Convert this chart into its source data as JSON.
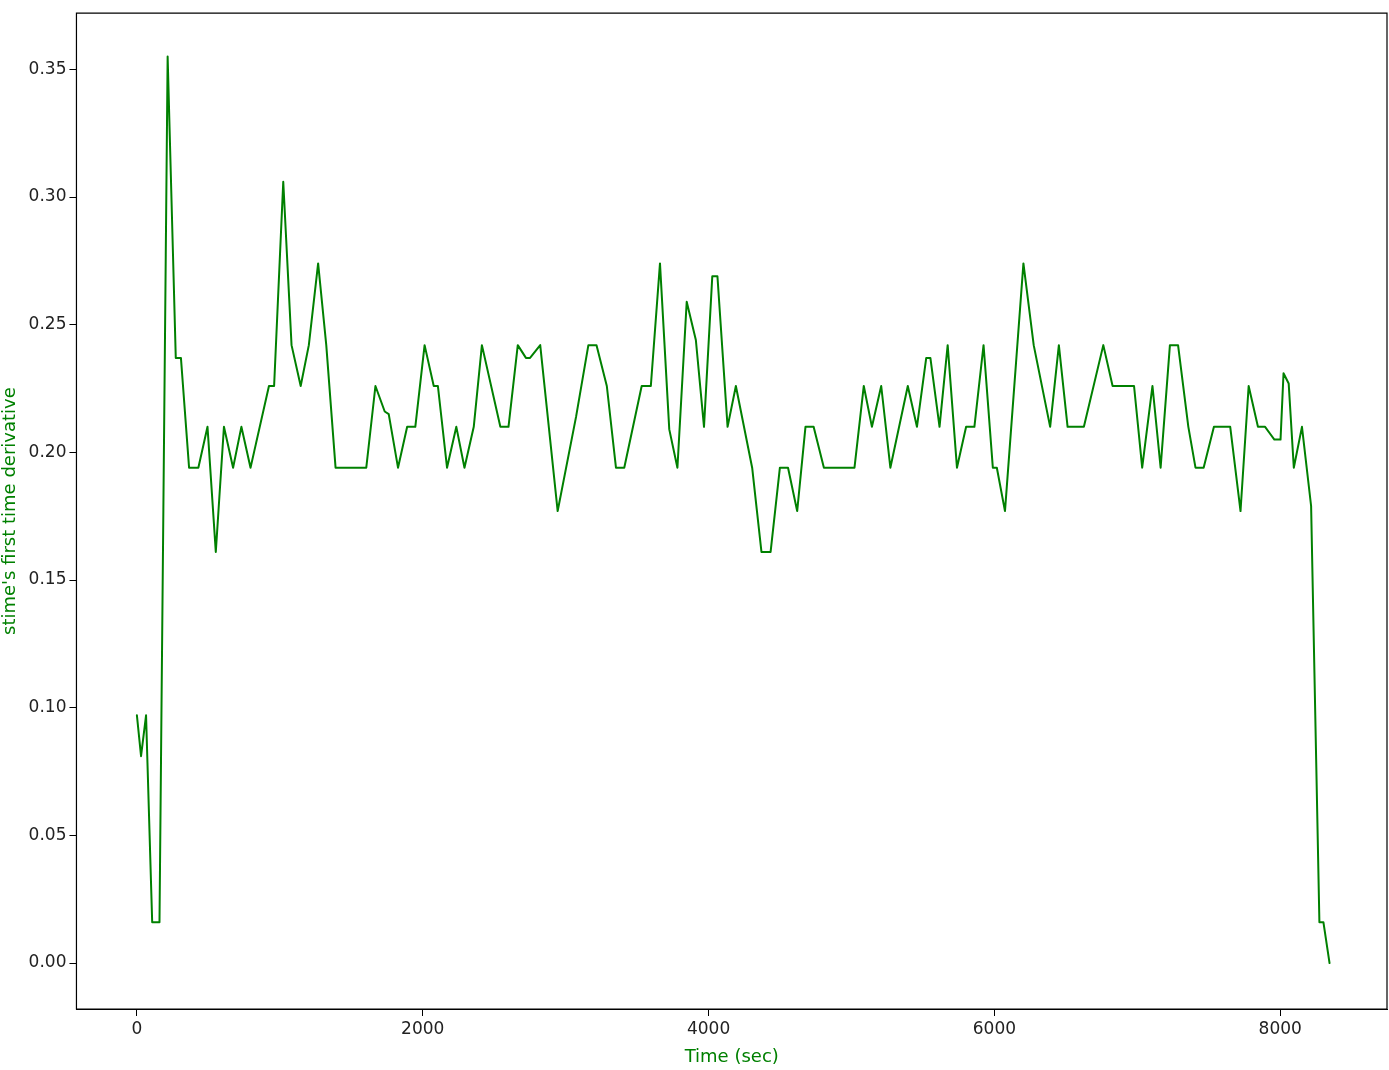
{
  "chart_data": {
    "type": "line",
    "xlabel": "Time (sec)",
    "ylabel": "stime's first time derivative",
    "grid": false,
    "legend": false,
    "marker": "none",
    "line_style": "solid",
    "xlim": [
      -423,
      8747
    ],
    "ylim": [
      -0.018,
      0.372
    ],
    "xticks": [
      0,
      2000,
      4000,
      6000,
      8000
    ],
    "yticks": [
      {
        "value": 0,
        "label": "0.00"
      },
      {
        "value": 0.05,
        "label": "0.05"
      },
      {
        "value": 0.1,
        "label": "0.10"
      },
      {
        "value": 0.15,
        "label": "0.15"
      },
      {
        "value": 0.2,
        "label": "0.20"
      },
      {
        "value": 0.25,
        "label": "0.25"
      },
      {
        "value": 0.3,
        "label": "0.30"
      },
      {
        "value": 0.35,
        "label": "0.35"
      }
    ],
    "series": [
      {
        "color": "#008000",
        "x": [
          0,
          29,
          64,
          107,
          158,
          215,
          272,
          308,
          365,
          430,
          494,
          552,
          609,
          673,
          731,
          795,
          924,
          960,
          1024,
          1082,
          1146,
          1203,
          1268,
          1325,
          1390,
          1605,
          1669,
          1734,
          1762,
          1827,
          1891,
          1948,
          2013,
          2077,
          2106,
          2170,
          2235,
          2292,
          2357,
          2414,
          2543,
          2600,
          2665,
          2722,
          2751,
          2822,
          2944,
          3073,
          3159,
          3216,
          3288,
          3352,
          3410,
          3532,
          3596,
          3660,
          3725,
          3782,
          3847,
          3911,
          3968,
          4026,
          4062,
          4133,
          4191,
          4305,
          4370,
          4434,
          4499,
          4556,
          4620,
          4678,
          4735,
          4807,
          5021,
          5086,
          5143,
          5208,
          5272,
          5394,
          5458,
          5523,
          5552,
          5616,
          5673,
          5738,
          5802,
          5860,
          5924,
          5989,
          6017,
          6074,
          6203,
          6275,
          6390,
          6451,
          6512,
          6626,
          6762,
          6827,
          6977,
          7034,
          7106,
          7163,
          7228,
          7285,
          7357,
          7407,
          7464,
          7536,
          7650,
          7722,
          7779,
          7844,
          7894,
          7959,
          8002,
          8023,
          8059,
          8095,
          8152,
          8216,
          8274,
          8302,
          8345
        ],
        "values": [
          0.097,
          0.081,
          0.097,
          0.016,
          0.016,
          0.355,
          0.237,
          0.237,
          0.194,
          0.194,
          0.21,
          0.161,
          0.21,
          0.194,
          0.21,
          0.194,
          0.226,
          0.226,
          0.306,
          0.242,
          0.226,
          0.242,
          0.274,
          0.242,
          0.194,
          0.194,
          0.226,
          0.216,
          0.215,
          0.194,
          0.21,
          0.21,
          0.242,
          0.226,
          0.226,
          0.194,
          0.21,
          0.194,
          0.21,
          0.242,
          0.21,
          0.21,
          0.242,
          0.237,
          0.237,
          0.242,
          0.177,
          0.214,
          0.242,
          0.242,
          0.226,
          0.194,
          0.194,
          0.226,
          0.226,
          0.274,
          0.209,
          0.194,
          0.259,
          0.244,
          0.21,
          0.269,
          0.269,
          0.21,
          0.226,
          0.194,
          0.161,
          0.161,
          0.194,
          0.194,
          0.177,
          0.21,
          0.21,
          0.194,
          0.194,
          0.226,
          0.21,
          0.226,
          0.194,
          0.226,
          0.21,
          0.237,
          0.237,
          0.21,
          0.242,
          0.194,
          0.21,
          0.21,
          0.242,
          0.194,
          0.194,
          0.177,
          0.274,
          0.242,
          0.21,
          0.242,
          0.21,
          0.21,
          0.242,
          0.226,
          0.226,
          0.194,
          0.226,
          0.194,
          0.242,
          0.242,
          0.21,
          0.194,
          0.194,
          0.21,
          0.21,
          0.177,
          0.226,
          0.21,
          0.21,
          0.205,
          0.205,
          0.231,
          0.227,
          0.194,
          0.21,
          0.179,
          0.016,
          0.016,
          0
        ]
      }
    ]
  }
}
